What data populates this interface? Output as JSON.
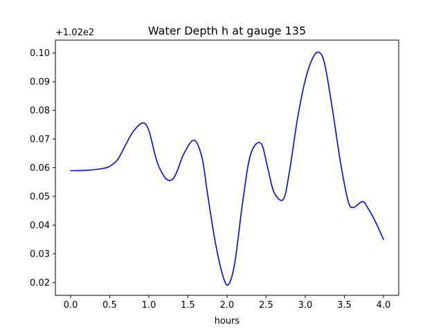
{
  "chart_data": {
    "type": "line",
    "title": "Water Depth h at gauge 135",
    "xlabel": "hours",
    "ylabel": "",
    "offset_label": "+1.02e2",
    "xlim": [
      -0.195,
      4.195
    ],
    "ylim": [
      0.0155,
      0.1045
    ],
    "grid": false,
    "x_ticks": [
      0.0,
      0.5,
      1.0,
      1.5,
      2.0,
      2.5,
      3.0,
      3.5,
      4.0
    ],
    "x_tick_labels": [
      "0.0",
      "0.5",
      "1.0",
      "1.5",
      "2.0",
      "2.5",
      "3.0",
      "3.5",
      "4.0"
    ],
    "y_ticks": [
      0.02,
      0.03,
      0.04,
      0.05,
      0.06,
      0.07,
      0.08,
      0.09,
      0.1
    ],
    "y_tick_labels": [
      "0.02",
      "0.03",
      "0.04",
      "0.05",
      "0.06",
      "0.07",
      "0.08",
      "0.09",
      "0.10"
    ],
    "series": [
      {
        "color": "#0000ff",
        "x": [
          0.0,
          0.2,
          0.4,
          0.5,
          0.6,
          0.7,
          0.8,
          0.92,
          1.0,
          1.1,
          1.2,
          1.28,
          1.35,
          1.45,
          1.58,
          1.68,
          1.75,
          1.85,
          1.95,
          2.02,
          2.1,
          2.2,
          2.3,
          2.43,
          2.52,
          2.6,
          2.72,
          2.8,
          2.9,
          3.0,
          3.1,
          3.18,
          3.25,
          3.35,
          3.45,
          3.55,
          3.62,
          3.73,
          3.8,
          3.9,
          4.0
        ],
        "y": [
          0.059,
          0.0591,
          0.0597,
          0.0605,
          0.0628,
          0.0678,
          0.0726,
          0.0756,
          0.073,
          0.0625,
          0.0568,
          0.0556,
          0.058,
          0.065,
          0.0696,
          0.0635,
          0.051,
          0.034,
          0.022,
          0.0193,
          0.027,
          0.048,
          0.0645,
          0.0686,
          0.06,
          0.0515,
          0.049,
          0.059,
          0.077,
          0.0905,
          0.0985,
          0.1002,
          0.096,
          0.08,
          0.062,
          0.0482,
          0.0462,
          0.0482,
          0.046,
          0.041,
          0.035
        ]
      }
    ]
  }
}
